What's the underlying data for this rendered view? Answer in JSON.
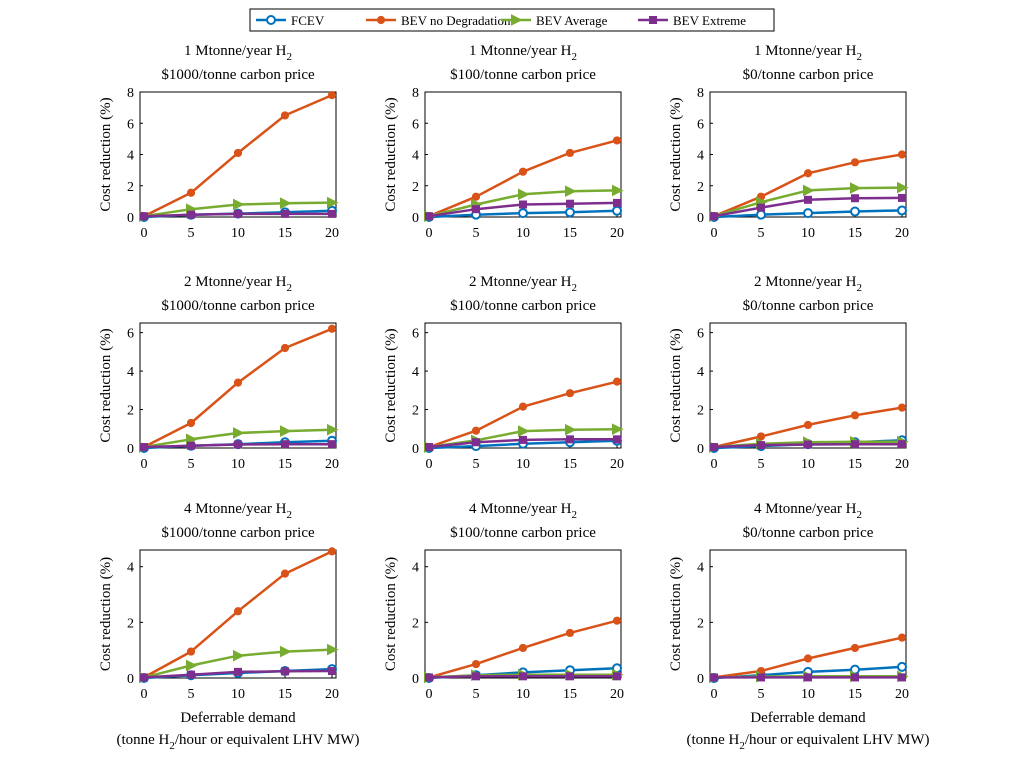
{
  "legend": [
    "FCEV",
    "BEV no Degradation",
    "BEV Average",
    "BEV Extreme"
  ],
  "colors": {
    "FCEV": "#0072BD",
    "BEV no Degradation": "#D95319",
    "BEV Average": "#77AC30",
    "BEV Extreme": "#7E2F8E"
  },
  "chart_data": [
    {
      "type": "line",
      "title": "1 Mtonne/year H2",
      "title_main": "1 Mtonne/year H",
      "title_sub": "2",
      "subtitle": "$1000/tonne carbon price",
      "ylabel": "Cost reduction (%)",
      "xlabel": "",
      "ylim": [
        0,
        8
      ],
      "yticks": [
        "0",
        "2",
        "4",
        "6",
        "8"
      ],
      "x": [
        0,
        5,
        10,
        15,
        20
      ],
      "xticks": [
        "0",
        "5",
        "10",
        "15",
        "20"
      ],
      "series": [
        {
          "name": "FCEV",
          "values": [
            0.0,
            0.15,
            0.22,
            0.3,
            0.4
          ]
        },
        {
          "name": "BEV no Degradation",
          "values": [
            0.05,
            1.55,
            4.1,
            6.5,
            7.8
          ]
        },
        {
          "name": "BEV Average",
          "values": [
            0.05,
            0.5,
            0.8,
            0.88,
            0.92
          ]
        },
        {
          "name": "BEV Extreme",
          "values": [
            0.05,
            0.15,
            0.2,
            0.2,
            0.2
          ]
        }
      ]
    },
    {
      "type": "line",
      "title": "1 Mtonne/year H2",
      "title_main": "1 Mtonne/year H",
      "title_sub": "2",
      "subtitle": "$100/tonne carbon price",
      "ylabel": "Cost reduction (%)",
      "xlabel": "",
      "ylim": [
        0,
        8
      ],
      "yticks": [
        "0",
        "2",
        "4",
        "6",
        "8"
      ],
      "x": [
        0,
        5,
        10,
        15,
        20
      ],
      "xticks": [
        "0",
        "5",
        "10",
        "15",
        "20"
      ],
      "series": [
        {
          "name": "FCEV",
          "values": [
            0.0,
            0.15,
            0.25,
            0.3,
            0.4
          ]
        },
        {
          "name": "BEV no Degradation",
          "values": [
            0.05,
            1.3,
            2.9,
            4.1,
            4.9
          ]
        },
        {
          "name": "BEV Average",
          "values": [
            0.05,
            0.8,
            1.45,
            1.65,
            1.7
          ]
        },
        {
          "name": "BEV Extreme",
          "values": [
            0.05,
            0.5,
            0.8,
            0.85,
            0.9
          ]
        }
      ]
    },
    {
      "type": "line",
      "title": "1 Mtonne/year H2",
      "title_main": "1 Mtonne/year H",
      "title_sub": "2",
      "subtitle": "$0/tonne carbon price",
      "ylabel": "Cost reduction (%)",
      "xlabel": "",
      "ylim": [
        0,
        8
      ],
      "yticks": [
        "0",
        "2",
        "4",
        "6",
        "8"
      ],
      "x": [
        0,
        5,
        10,
        15,
        20
      ],
      "xticks": [
        "0",
        "5",
        "10",
        "15",
        "20"
      ],
      "series": [
        {
          "name": "FCEV",
          "values": [
            0.0,
            0.15,
            0.25,
            0.35,
            0.42
          ]
        },
        {
          "name": "BEV no Degradation",
          "values": [
            0.05,
            1.3,
            2.8,
            3.5,
            4.0
          ]
        },
        {
          "name": "BEV Average",
          "values": [
            0.05,
            0.95,
            1.7,
            1.85,
            1.88
          ]
        },
        {
          "name": "BEV Extreme",
          "values": [
            0.05,
            0.6,
            1.1,
            1.2,
            1.22
          ]
        }
      ]
    },
    {
      "type": "line",
      "title": "2 Mtonne/year H2",
      "title_main": "2 Mtonne/year H",
      "title_sub": "2",
      "subtitle": "$1000/tonne carbon price",
      "ylabel": "Cost reduction (%)",
      "xlabel": "",
      "ylim": [
        0,
        6.5
      ],
      "yticks": [
        "0",
        "2",
        "4",
        "6"
      ],
      "x": [
        0,
        5,
        10,
        15,
        20
      ],
      "xticks": [
        "0",
        "5",
        "10",
        "15",
        "20"
      ],
      "series": [
        {
          "name": "FCEV",
          "values": [
            0.0,
            0.12,
            0.2,
            0.3,
            0.38
          ]
        },
        {
          "name": "BEV no Degradation",
          "values": [
            0.05,
            1.3,
            3.4,
            5.2,
            6.2
          ]
        },
        {
          "name": "BEV Average",
          "values": [
            0.05,
            0.45,
            0.78,
            0.88,
            0.95
          ]
        },
        {
          "name": "BEV Extreme",
          "values": [
            0.05,
            0.12,
            0.18,
            0.2,
            0.2
          ]
        }
      ]
    },
    {
      "type": "line",
      "title": "2 Mtonne/year H2",
      "title_main": "2 Mtonne/year H",
      "title_sub": "2",
      "subtitle": "$100/tonne carbon price",
      "ylabel": "Cost reduction (%)",
      "xlabel": "",
      "ylim": [
        0,
        6.5
      ],
      "yticks": [
        "0",
        "2",
        "4",
        "6"
      ],
      "x": [
        0,
        5,
        10,
        15,
        20
      ],
      "xticks": [
        "0",
        "5",
        "10",
        "15",
        "20"
      ],
      "series": [
        {
          "name": "FCEV",
          "values": [
            0.0,
            0.1,
            0.22,
            0.3,
            0.38
          ]
        },
        {
          "name": "BEV no Degradation",
          "values": [
            0.05,
            0.9,
            2.15,
            2.85,
            3.45
          ]
        },
        {
          "name": "BEV Average",
          "values": [
            0.05,
            0.4,
            0.88,
            0.95,
            0.98
          ]
        },
        {
          "name": "BEV Extreme",
          "values": [
            0.05,
            0.3,
            0.42,
            0.45,
            0.45
          ]
        }
      ]
    },
    {
      "type": "line",
      "title": "2 Mtonne/year H2",
      "title_main": "2 Mtonne/year H",
      "title_sub": "2",
      "subtitle": "$0/tonne carbon price",
      "ylabel": "Cost reduction (%)",
      "xlabel": "",
      "ylim": [
        0,
        6.5
      ],
      "yticks": [
        "0",
        "2",
        "4",
        "6"
      ],
      "x": [
        0,
        5,
        10,
        15,
        20
      ],
      "xticks": [
        "0",
        "5",
        "10",
        "15",
        "20"
      ],
      "series": [
        {
          "name": "FCEV",
          "values": [
            0.0,
            0.1,
            0.2,
            0.3,
            0.4
          ]
        },
        {
          "name": "BEV no Degradation",
          "values": [
            0.05,
            0.6,
            1.2,
            1.7,
            2.1
          ]
        },
        {
          "name": "BEV Average",
          "values": [
            0.05,
            0.22,
            0.3,
            0.32,
            0.33
          ]
        },
        {
          "name": "BEV Extreme",
          "values": [
            0.05,
            0.15,
            0.18,
            0.2,
            0.2
          ]
        }
      ]
    },
    {
      "type": "line",
      "title": "4 Mtonne/year H2",
      "title_main": "4 Mtonne/year H",
      "title_sub": "2",
      "subtitle": "$1000/tonne carbon price",
      "ylabel": "Cost reduction (%)",
      "xlabel": "Deferrable demand",
      "xlabel2": "(tonne H2/hour or equivalent LHV MW)",
      "ylim": [
        0,
        4.6
      ],
      "yticks": [
        "0",
        "2",
        "4"
      ],
      "x": [
        0,
        5,
        10,
        15,
        20
      ],
      "xticks": [
        "0",
        "5",
        "10",
        "15",
        "20"
      ],
      "series": [
        {
          "name": "FCEV",
          "values": [
            0.0,
            0.1,
            0.18,
            0.25,
            0.32
          ]
        },
        {
          "name": "BEV no Degradation",
          "values": [
            0.02,
            0.95,
            2.4,
            3.75,
            4.55
          ]
        },
        {
          "name": "BEV Average",
          "values": [
            0.02,
            0.45,
            0.8,
            0.95,
            1.02
          ]
        },
        {
          "name": "BEV Extreme",
          "values": [
            0.02,
            0.12,
            0.22,
            0.24,
            0.25
          ]
        }
      ]
    },
    {
      "type": "line",
      "title": "4 Mtonne/year H2",
      "title_main": "4 Mtonne/year H",
      "title_sub": "2",
      "subtitle": "$100/tonne carbon price",
      "ylabel": "Cost reduction (%)",
      "xlabel": "",
      "ylim": [
        0,
        4.6
      ],
      "yticks": [
        "0",
        "2",
        "4"
      ],
      "x": [
        0,
        5,
        10,
        15,
        20
      ],
      "xticks": [
        "0",
        "5",
        "10",
        "15",
        "20"
      ],
      "series": [
        {
          "name": "FCEV",
          "values": [
            0.0,
            0.1,
            0.2,
            0.28,
            0.35
          ]
        },
        {
          "name": "BEV no Degradation",
          "values": [
            0.02,
            0.5,
            1.08,
            1.62,
            2.06
          ]
        },
        {
          "name": "BEV Average",
          "values": [
            0.02,
            0.1,
            0.12,
            0.12,
            0.12
          ]
        },
        {
          "name": "BEV Extreme",
          "values": [
            0.02,
            0.06,
            0.06,
            0.06,
            0.06
          ]
        }
      ]
    },
    {
      "type": "line",
      "title": "4 Mtonne/year H2",
      "title_main": "4 Mtonne/year H",
      "title_sub": "2",
      "subtitle": "$0/tonne carbon price",
      "ylabel": "Cost reduction (%)",
      "xlabel": "Deferrable demand",
      "xlabel2": "(tonne H2/hour or equivalent LHV MW)",
      "ylim": [
        0,
        4.6
      ],
      "yticks": [
        "0",
        "2",
        "4"
      ],
      "x": [
        0,
        5,
        10,
        15,
        20
      ],
      "xticks": [
        "0",
        "5",
        "10",
        "15",
        "20"
      ],
      "series": [
        {
          "name": "FCEV",
          "values": [
            0.0,
            0.1,
            0.22,
            0.3,
            0.4
          ]
        },
        {
          "name": "BEV no Degradation",
          "values": [
            0.02,
            0.25,
            0.7,
            1.08,
            1.45
          ]
        },
        {
          "name": "BEV Average",
          "values": [
            0.02,
            0.05,
            0.06,
            0.06,
            0.06
          ]
        },
        {
          "name": "BEV Extreme",
          "values": [
            0.02,
            0.02,
            0.02,
            0.02,
            0.02
          ]
        }
      ]
    }
  ]
}
